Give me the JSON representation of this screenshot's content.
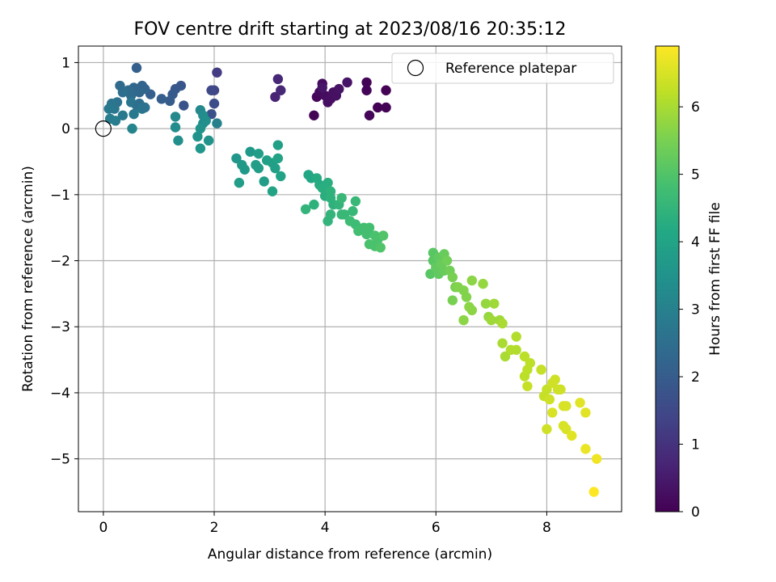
{
  "chart_data": {
    "type": "scatter",
    "title": "FOV centre drift starting at 2023/08/16 20:35:12",
    "xlabel": "Angular distance from reference (arcmin)",
    "ylabel": "Rotation from reference (arcmin)",
    "xlim": [
      -0.45,
      9.35
    ],
    "ylim": [
      -5.8,
      1.25
    ],
    "xticks": [
      0,
      2,
      4,
      6,
      8
    ],
    "yticks": [
      -5,
      -4,
      -3,
      -2,
      -1,
      0,
      1
    ],
    "grid": true,
    "legend": {
      "position": "top-right",
      "entries": [
        "Reference platepar"
      ]
    },
    "reference": {
      "x": 0,
      "y": 0
    },
    "colorbar": {
      "label": "Hours from first FF file",
      "range": [
        0,
        6.9
      ],
      "ticks": [
        0,
        1,
        2,
        3,
        4,
        5,
        6
      ],
      "colormap": "viridis"
    },
    "points": [
      {
        "x": 3.8,
        "y": 0.2,
        "c": 0.05
      },
      {
        "x": 3.85,
        "y": 0.48,
        "c": 0.1
      },
      {
        "x": 3.9,
        "y": 0.55,
        "c": 0.15
      },
      {
        "x": 3.95,
        "y": 0.68,
        "c": 0.2
      },
      {
        "x": 4.0,
        "y": 0.5,
        "c": 0.22
      },
      {
        "x": 4.05,
        "y": 0.4,
        "c": 0.25
      },
      {
        "x": 4.1,
        "y": 0.45,
        "c": 0.28
      },
      {
        "x": 4.15,
        "y": 0.55,
        "c": 0.3
      },
      {
        "x": 4.2,
        "y": 0.5,
        "c": 0.32
      },
      {
        "x": 4.25,
        "y": 0.6,
        "c": 0.35
      },
      {
        "x": 4.4,
        "y": 0.7,
        "c": 0.38
      },
      {
        "x": 4.75,
        "y": 0.7,
        "c": 0.05
      },
      {
        "x": 4.75,
        "y": 0.58,
        "c": 0.08
      },
      {
        "x": 4.8,
        "y": 0.2,
        "c": 0.1
      },
      {
        "x": 4.95,
        "y": 0.32,
        "c": 0.02
      },
      {
        "x": 5.1,
        "y": 0.58,
        "c": 0.03
      },
      {
        "x": 5.1,
        "y": 0.32,
        "c": 0.05
      },
      {
        "x": 3.95,
        "y": 0.62,
        "c": 0.4
      },
      {
        "x": 3.1,
        "y": 0.48,
        "c": 0.7
      },
      {
        "x": 3.15,
        "y": 0.75,
        "c": 0.75
      },
      {
        "x": 3.2,
        "y": 0.58,
        "c": 0.78
      },
      {
        "x": 2.05,
        "y": 0.85,
        "c": 1.2
      },
      {
        "x": 2.0,
        "y": 0.58,
        "c": 1.4
      },
      {
        "x": 1.95,
        "y": 0.58,
        "c": 1.5
      },
      {
        "x": 2.0,
        "y": 0.38,
        "c": 1.6
      },
      {
        "x": 1.95,
        "y": 0.22,
        "c": 1.7
      },
      {
        "x": 2.05,
        "y": 0.08,
        "c": 3.0
      },
      {
        "x": 1.45,
        "y": 0.35,
        "c": 1.8
      },
      {
        "x": 1.4,
        "y": 0.65,
        "c": 1.85
      },
      {
        "x": 1.3,
        "y": 0.6,
        "c": 1.9
      },
      {
        "x": 1.25,
        "y": 0.52,
        "c": 1.95
      },
      {
        "x": 1.2,
        "y": 0.42,
        "c": 2.0
      },
      {
        "x": 1.05,
        "y": 0.45,
        "c": 2.05
      },
      {
        "x": 0.85,
        "y": 0.52,
        "c": 2.1
      },
      {
        "x": 0.75,
        "y": 0.6,
        "c": 2.2
      },
      {
        "x": 0.7,
        "y": 0.65,
        "c": 2.2
      },
      {
        "x": 0.65,
        "y": 0.55,
        "c": 2.3
      },
      {
        "x": 0.6,
        "y": 0.92,
        "c": 2.1
      },
      {
        "x": 0.55,
        "y": 0.62,
        "c": 2.3
      },
      {
        "x": 0.5,
        "y": 0.5,
        "c": 2.4
      },
      {
        "x": 0.45,
        "y": 0.58,
        "c": 2.4
      },
      {
        "x": 0.35,
        "y": 0.55,
        "c": 2.5
      },
      {
        "x": 0.3,
        "y": 0.65,
        "c": 2.4
      },
      {
        "x": 0.25,
        "y": 0.4,
        "c": 2.6
      },
      {
        "x": 0.2,
        "y": 0.3,
        "c": 2.7
      },
      {
        "x": 0.15,
        "y": 0.38,
        "c": 2.7
      },
      {
        "x": 0.1,
        "y": 0.3,
        "c": 2.8
      },
      {
        "x": 0.12,
        "y": 0.15,
        "c": 2.9
      },
      {
        "x": 0.22,
        "y": 0.12,
        "c": 2.9
      },
      {
        "x": 0.35,
        "y": 0.2,
        "c": 2.8
      },
      {
        "x": 0.5,
        "y": 0.4,
        "c": 2.7
      },
      {
        "x": 0.55,
        "y": 0.22,
        "c": 2.8
      },
      {
        "x": 0.6,
        "y": 0.35,
        "c": 2.6
      },
      {
        "x": 0.65,
        "y": 0.38,
        "c": 2.5
      },
      {
        "x": 0.7,
        "y": 0.3,
        "c": 2.7
      },
      {
        "x": 0.75,
        "y": 0.32,
        "c": 2.6
      },
      {
        "x": 0.52,
        "y": 0.0,
        "c": 3.1
      },
      {
        "x": 1.3,
        "y": 0.18,
        "c": 3.2
      },
      {
        "x": 1.3,
        "y": 0.02,
        "c": 3.3
      },
      {
        "x": 1.35,
        "y": -0.18,
        "c": 3.4
      },
      {
        "x": 1.75,
        "y": 0.28,
        "c": 3.2
      },
      {
        "x": 1.8,
        "y": 0.2,
        "c": 3.3
      },
      {
        "x": 1.8,
        "y": 0.08,
        "c": 3.3
      },
      {
        "x": 1.85,
        "y": 0.12,
        "c": 3.4
      },
      {
        "x": 1.75,
        "y": 0.0,
        "c": 3.5
      },
      {
        "x": 1.7,
        "y": -0.12,
        "c": 3.5
      },
      {
        "x": 1.75,
        "y": -0.3,
        "c": 3.6
      },
      {
        "x": 1.9,
        "y": -0.18,
        "c": 3.5
      },
      {
        "x": 2.4,
        "y": -0.45,
        "c": 3.6
      },
      {
        "x": 2.5,
        "y": -0.55,
        "c": 3.7
      },
      {
        "x": 2.55,
        "y": -0.62,
        "c": 3.7
      },
      {
        "x": 2.65,
        "y": -0.35,
        "c": 3.7
      },
      {
        "x": 2.75,
        "y": -0.55,
        "c": 3.8
      },
      {
        "x": 2.8,
        "y": -0.38,
        "c": 3.8
      },
      {
        "x": 2.8,
        "y": -0.6,
        "c": 3.8
      },
      {
        "x": 2.45,
        "y": -0.82,
        "c": 3.8
      },
      {
        "x": 2.9,
        "y": -0.8,
        "c": 3.8
      },
      {
        "x": 2.95,
        "y": -0.48,
        "c": 3.9
      },
      {
        "x": 3.05,
        "y": -0.52,
        "c": 3.9
      },
      {
        "x": 3.1,
        "y": -0.6,
        "c": 3.9
      },
      {
        "x": 3.15,
        "y": -0.25,
        "c": 3.9
      },
      {
        "x": 3.15,
        "y": -0.45,
        "c": 4.0
      },
      {
        "x": 3.2,
        "y": -0.72,
        "c": 4.0
      },
      {
        "x": 3.05,
        "y": -0.95,
        "c": 4.0
      },
      {
        "x": 3.7,
        "y": -0.7,
        "c": 4.1
      },
      {
        "x": 3.75,
        "y": -0.75,
        "c": 4.1
      },
      {
        "x": 3.85,
        "y": -0.75,
        "c": 4.2
      },
      {
        "x": 3.9,
        "y": -0.85,
        "c": 4.2
      },
      {
        "x": 3.95,
        "y": -0.9,
        "c": 4.3
      },
      {
        "x": 4.05,
        "y": -0.82,
        "c": 4.3
      },
      {
        "x": 4.0,
        "y": -1.02,
        "c": 4.3
      },
      {
        "x": 4.1,
        "y": -1.05,
        "c": 4.4
      },
      {
        "x": 4.1,
        "y": -0.95,
        "c": 4.4
      },
      {
        "x": 4.15,
        "y": -1.15,
        "c": 4.4
      },
      {
        "x": 4.1,
        "y": -1.3,
        "c": 4.5
      },
      {
        "x": 4.05,
        "y": -1.4,
        "c": 4.5
      },
      {
        "x": 3.8,
        "y": -1.15,
        "c": 4.4
      },
      {
        "x": 3.65,
        "y": -1.22,
        "c": 4.5
      },
      {
        "x": 4.25,
        "y": -1.15,
        "c": 4.5
      },
      {
        "x": 4.3,
        "y": -1.3,
        "c": 4.6
      },
      {
        "x": 4.35,
        "y": -1.3,
        "c": 4.6
      },
      {
        "x": 4.3,
        "y": -1.05,
        "c": 4.6
      },
      {
        "x": 4.5,
        "y": -1.25,
        "c": 4.6
      },
      {
        "x": 4.55,
        "y": -1.1,
        "c": 4.6
      },
      {
        "x": 4.45,
        "y": -1.4,
        "c": 4.7
      },
      {
        "x": 4.55,
        "y": -1.45,
        "c": 4.7
      },
      {
        "x": 4.6,
        "y": -1.55,
        "c": 4.8
      },
      {
        "x": 4.7,
        "y": -1.5,
        "c": 4.8
      },
      {
        "x": 4.75,
        "y": -1.6,
        "c": 4.8
      },
      {
        "x": 4.8,
        "y": -1.5,
        "c": 4.8
      },
      {
        "x": 4.9,
        "y": -1.62,
        "c": 4.9
      },
      {
        "x": 4.95,
        "y": -1.68,
        "c": 4.9
      },
      {
        "x": 4.8,
        "y": -1.75,
        "c": 4.9
      },
      {
        "x": 4.9,
        "y": -1.78,
        "c": 4.9
      },
      {
        "x": 5.0,
        "y": -1.8,
        "c": 5.0
      },
      {
        "x": 5.05,
        "y": -1.62,
        "c": 5.0
      },
      {
        "x": 5.9,
        "y": -2.2,
        "c": 5.1
      },
      {
        "x": 5.95,
        "y": -2.0,
        "c": 5.1
      },
      {
        "x": 5.95,
        "y": -1.88,
        "c": 5.1
      },
      {
        "x": 6.0,
        "y": -2.1,
        "c": 5.2
      },
      {
        "x": 6.05,
        "y": -1.95,
        "c": 5.2
      },
      {
        "x": 6.05,
        "y": -2.2,
        "c": 5.2
      },
      {
        "x": 6.1,
        "y": -2.05,
        "c": 5.3
      },
      {
        "x": 6.15,
        "y": -1.9,
        "c": 5.3
      },
      {
        "x": 6.15,
        "y": -2.15,
        "c": 5.3
      },
      {
        "x": 6.2,
        "y": -2.0,
        "c": 5.4
      },
      {
        "x": 6.25,
        "y": -2.15,
        "c": 5.4
      },
      {
        "x": 6.3,
        "y": -2.25,
        "c": 5.5
      },
      {
        "x": 6.3,
        "y": -2.6,
        "c": 5.5
      },
      {
        "x": 6.35,
        "y": -2.4,
        "c": 5.5
      },
      {
        "x": 6.4,
        "y": -2.4,
        "c": 5.6
      },
      {
        "x": 6.5,
        "y": -2.45,
        "c": 5.6
      },
      {
        "x": 6.55,
        "y": -2.55,
        "c": 5.6
      },
      {
        "x": 6.5,
        "y": -2.9,
        "c": 5.7
      },
      {
        "x": 6.6,
        "y": -2.7,
        "c": 5.7
      },
      {
        "x": 6.65,
        "y": -2.75,
        "c": 5.7
      },
      {
        "x": 6.65,
        "y": -2.3,
        "c": 5.7
      },
      {
        "x": 6.85,
        "y": -2.35,
        "c": 5.8
      },
      {
        "x": 6.9,
        "y": -2.65,
        "c": 5.8
      },
      {
        "x": 6.95,
        "y": -2.85,
        "c": 5.8
      },
      {
        "x": 7.0,
        "y": -2.9,
        "c": 5.9
      },
      {
        "x": 7.05,
        "y": -2.65,
        "c": 5.9
      },
      {
        "x": 7.15,
        "y": -2.9,
        "c": 5.9
      },
      {
        "x": 7.2,
        "y": -2.95,
        "c": 6.0
      },
      {
        "x": 7.2,
        "y": -3.25,
        "c": 6.0
      },
      {
        "x": 7.25,
        "y": -3.45,
        "c": 6.0
      },
      {
        "x": 7.35,
        "y": -3.35,
        "c": 6.1
      },
      {
        "x": 7.45,
        "y": -3.15,
        "c": 6.1
      },
      {
        "x": 7.45,
        "y": -3.35,
        "c": 6.1
      },
      {
        "x": 7.6,
        "y": -3.45,
        "c": 6.2
      },
      {
        "x": 7.6,
        "y": -3.75,
        "c": 6.2
      },
      {
        "x": 7.65,
        "y": -3.65,
        "c": 6.2
      },
      {
        "x": 7.7,
        "y": -3.55,
        "c": 6.2
      },
      {
        "x": 7.65,
        "y": -3.9,
        "c": 6.3
      },
      {
        "x": 7.9,
        "y": -3.65,
        "c": 6.3
      },
      {
        "x": 7.95,
        "y": -4.05,
        "c": 6.3
      },
      {
        "x": 8.0,
        "y": -3.95,
        "c": 6.3
      },
      {
        "x": 8.05,
        "y": -4.1,
        "c": 6.4
      },
      {
        "x": 8.1,
        "y": -3.85,
        "c": 6.4
      },
      {
        "x": 8.15,
        "y": -3.8,
        "c": 6.4
      },
      {
        "x": 8.2,
        "y": -3.95,
        "c": 6.4
      },
      {
        "x": 8.25,
        "y": -3.95,
        "c": 6.4
      },
      {
        "x": 8.0,
        "y": -4.55,
        "c": 6.4
      },
      {
        "x": 8.1,
        "y": -4.3,
        "c": 6.5
      },
      {
        "x": 8.3,
        "y": -4.2,
        "c": 6.5
      },
      {
        "x": 8.35,
        "y": -4.2,
        "c": 6.5
      },
      {
        "x": 8.3,
        "y": -4.5,
        "c": 6.5
      },
      {
        "x": 8.35,
        "y": -4.55,
        "c": 6.5
      },
      {
        "x": 8.45,
        "y": -4.65,
        "c": 6.6
      },
      {
        "x": 8.6,
        "y": -4.15,
        "c": 6.6
      },
      {
        "x": 8.7,
        "y": -4.3,
        "c": 6.6
      },
      {
        "x": 8.7,
        "y": -4.85,
        "c": 6.7
      },
      {
        "x": 8.9,
        "y": -5.0,
        "c": 6.75
      },
      {
        "x": 8.85,
        "y": -5.5,
        "c": 6.9
      }
    ]
  }
}
